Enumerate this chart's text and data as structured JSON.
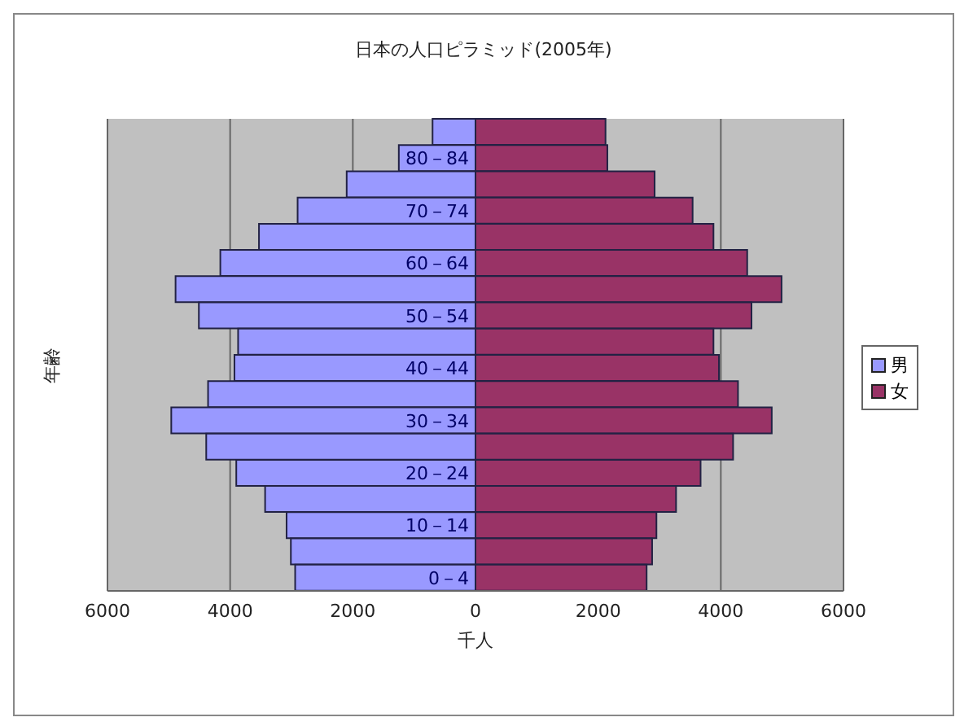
{
  "chart_data": {
    "type": "bar",
    "orientation": "horizontal",
    "stacked": true,
    "title": "日本の人口ピラミッド(2005年)",
    "xlabel": "千人",
    "ylabel": "年齢",
    "categories": [
      null,
      "80－84",
      null,
      "70－74",
      null,
      "60－64",
      null,
      "50－54",
      null,
      "40－44",
      null,
      "30－34",
      null,
      "20－24",
      null,
      "10－14",
      null,
      "0－4"
    ],
    "series": [
      {
        "name": "男",
        "color": "#9999ff",
        "values": [
          -700,
          -1250,
          -2100,
          -2900,
          -3530,
          -4160,
          -4890,
          -4510,
          -3870,
          -3930,
          -4360,
          -4960,
          -4390,
          -3900,
          -3430,
          -3080,
          -3010,
          -2940
        ]
      },
      {
        "name": "女",
        "color": "#993366",
        "values": [
          2120,
          2150,
          2920,
          3540,
          3880,
          4430,
          4990,
          4500,
          3880,
          3970,
          4280,
          4830,
          4200,
          3670,
          3270,
          2950,
          2880,
          2790
        ]
      }
    ],
    "xlim": [
      -6000,
      6000
    ],
    "xticks": [
      {
        "value": -6000,
        "label": "6000"
      },
      {
        "value": -4000,
        "label": "4000"
      },
      {
        "value": -2000,
        "label": "2000"
      },
      0,
      2000,
      4000,
      6000
    ],
    "grid": "x",
    "legend": "right"
  }
}
